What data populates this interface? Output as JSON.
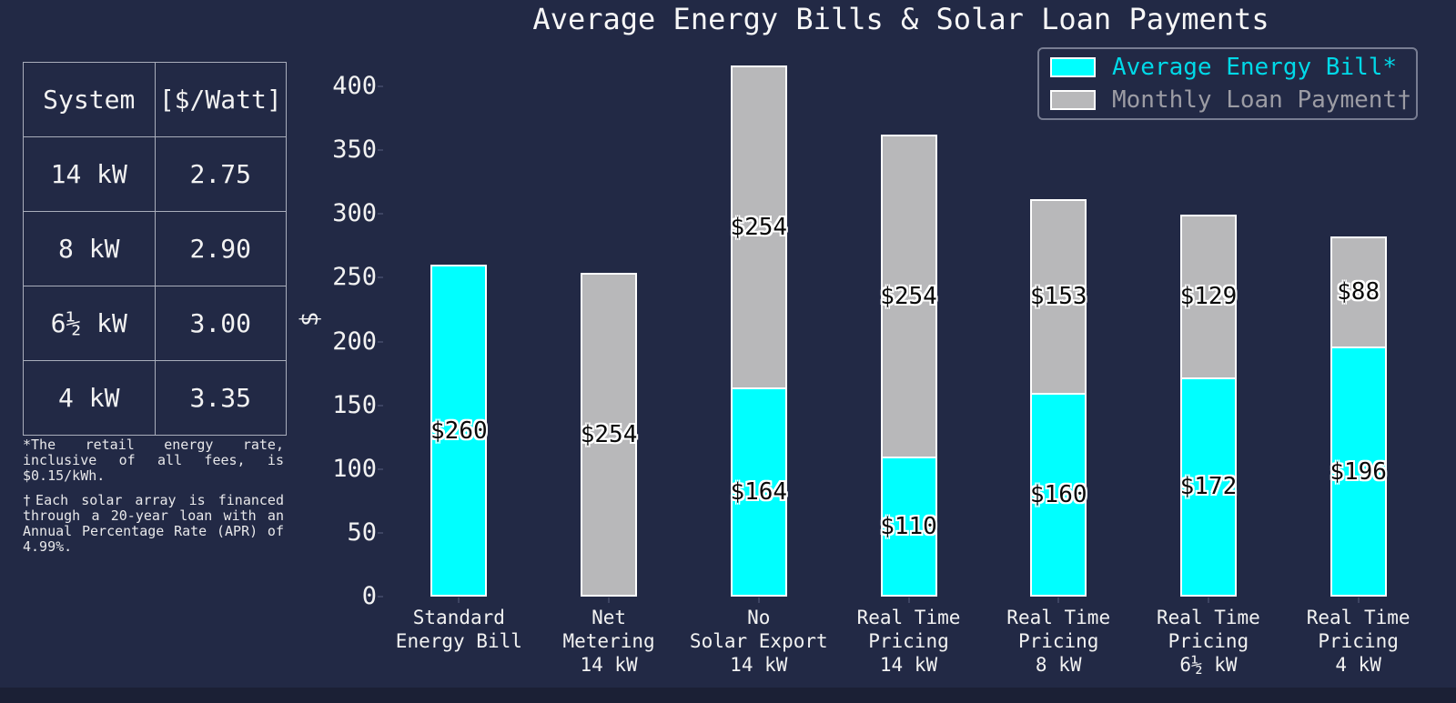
{
  "title": "Average Energy Bills & Solar Loan Payments",
  "colors": {
    "background": "#222945",
    "bottom_strip": "#1b2035",
    "bar_cyan": "#00ffff",
    "bar_silver": "#b8b8ba",
    "legend_cyan_text": "#00d9e8",
    "legend_gray_text": "#9c9ca4",
    "text": "#f2f2f2",
    "bar_edge": "#ffffff"
  },
  "table": {
    "headers": [
      "System",
      "[$/Watt]"
    ],
    "rows": [
      [
        "14 kW",
        "2.75"
      ],
      [
        "8 kW",
        "2.90"
      ],
      [
        "6½ kW",
        "3.00"
      ],
      [
        "4 kW",
        "3.35"
      ]
    ]
  },
  "footnotes": [
    "*The retail energy rate, inclusive of all fees, is $0.15/kWh.",
    "†Each solar array is financed through a 20-year loan with an Annual Percentage Rate (APR) of 4.99%."
  ],
  "legend": {
    "items": [
      {
        "label": "Average Energy Bill*",
        "swatch": "cyan"
      },
      {
        "label": "Monthly Loan Payment†",
        "swatch": "silver"
      }
    ]
  },
  "chart_data": {
    "type": "bar",
    "stacked": true,
    "title": "Average Energy Bills & Solar Loan Payments",
    "xlabel": "",
    "ylabel": "$",
    "ylim": [
      0,
      425
    ],
    "yticks": [
      0,
      50,
      100,
      150,
      200,
      250,
      300,
      350,
      400
    ],
    "grid": false,
    "legend_position": "upper right",
    "categories": [
      [
        "Standard",
        "Energy Bill"
      ],
      [
        "Net",
        "Metering",
        "14 kW"
      ],
      [
        "No",
        "Solar Export",
        "14 kW"
      ],
      [
        "Real Time",
        "Pricing",
        "14 kW"
      ],
      [
        "Real Time",
        "Pricing",
        "8 kW"
      ],
      [
        "Real Time",
        "Pricing",
        "6½ kW"
      ],
      [
        "Real Time",
        "Pricing",
        "4 kW"
      ]
    ],
    "series": [
      {
        "name": "Average Energy Bill*",
        "color": "#00ffff",
        "values": [
          260,
          0,
          164,
          110,
          160,
          172,
          196
        ]
      },
      {
        "name": "Monthly Loan Payment†",
        "color": "#b8b8ba",
        "values": [
          0,
          254,
          254,
          254,
          153,
          129,
          88
        ]
      }
    ],
    "totals": [
      260,
      254,
      418,
      364,
      313,
      301,
      284
    ],
    "value_label_prefix": "$"
  }
}
